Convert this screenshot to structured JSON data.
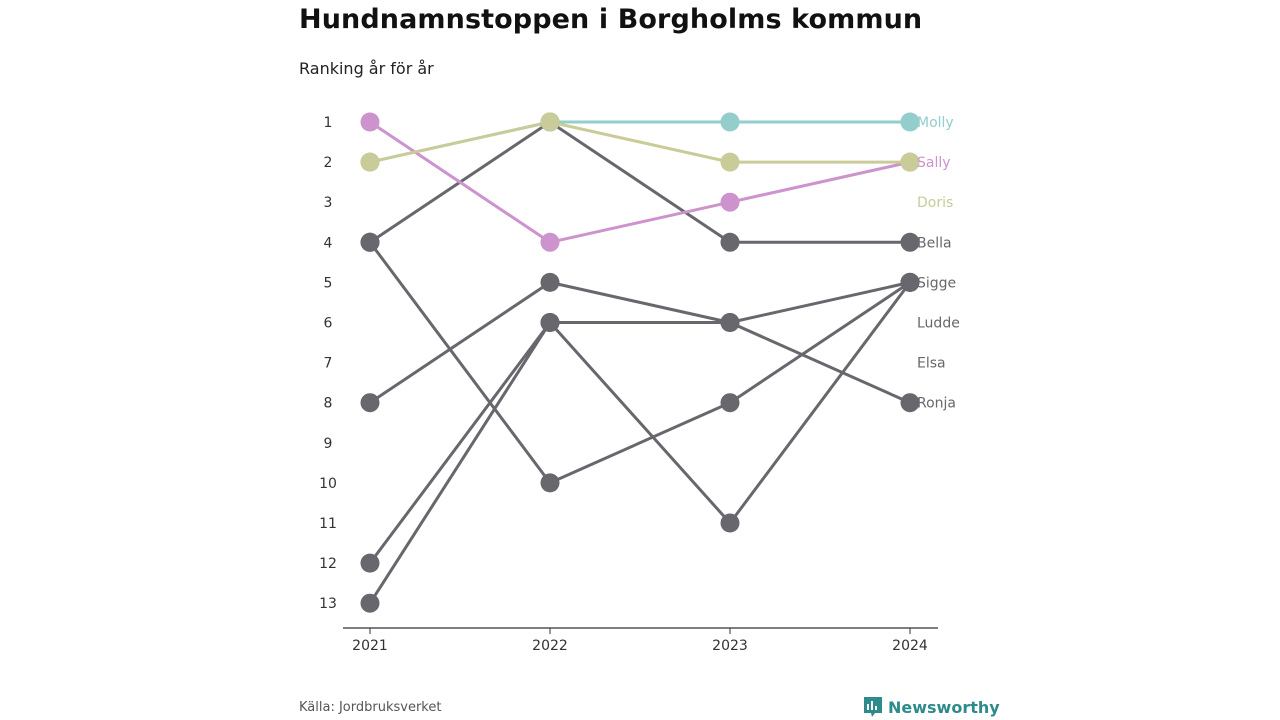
{
  "page": {
    "title": "Hundnamnstoppen i Borgholms kommun",
    "subtitle": "Ranking år för år",
    "source": "Källa: Jordbruksverket",
    "brand": "Newsworthy"
  },
  "colors": {
    "teal": "#93cdcc",
    "olive": "#c9cb98",
    "pink": "#cc93cc",
    "gray": "#68676d",
    "brand": "#2e8b8c"
  },
  "chart_data": {
    "type": "line",
    "title": "Hundnamnstoppen i Borgholms kommun",
    "subtitle": "Ranking år för år",
    "x": [
      "2021",
      "2022",
      "2023",
      "2024"
    ],
    "y_ticks": [
      1,
      2,
      3,
      4,
      5,
      6,
      7,
      8,
      9,
      10,
      11,
      12,
      13
    ],
    "ylim": [
      1,
      13
    ],
    "y_reversed": true,
    "grid": false,
    "series": [
      {
        "name": "Molly",
        "color": "#93cdcc",
        "values": [
          2,
          1,
          1,
          1
        ]
      },
      {
        "name": "Sally",
        "color": "#cc93cc",
        "values": [
          1,
          4,
          3,
          2
        ]
      },
      {
        "name": "Doris",
        "color": "#c9cb98",
        "values": [
          2,
          1,
          2,
          2
        ]
      },
      {
        "name": "Bella",
        "color": "#68676d",
        "values": [
          4,
          1,
          4,
          4
        ]
      },
      {
        "name": "Sigge",
        "color": "#68676d",
        "values": [
          13,
          6,
          11,
          5
        ]
      },
      {
        "name": "Ludde",
        "color": "#68676d",
        "values": [
          4,
          10,
          8,
          5
        ]
      },
      {
        "name": "Elsa",
        "color": "#68676d",
        "values": [
          8,
          5,
          6,
          8
        ]
      },
      {
        "name": "Ronja",
        "color": "#68676d",
        "values": [
          12,
          6,
          6,
          5
        ]
      }
    ],
    "end_labels": [
      {
        "name": "Molly",
        "rank": 1,
        "color": "#93cdcc"
      },
      {
        "name": "Sally",
        "rank": 2,
        "color": "#cc93cc"
      },
      {
        "name": "Doris",
        "rank": 3,
        "color": "#c9cb98"
      },
      {
        "name": "Bella",
        "rank": 4,
        "color": "#68676d"
      },
      {
        "name": "Sigge",
        "rank": 5,
        "color": "#68676d"
      },
      {
        "name": "Ludde",
        "rank": 6,
        "color": "#68676d"
      },
      {
        "name": "Elsa",
        "rank": 7,
        "color": "#68676d"
      },
      {
        "name": "Ronja",
        "rank": 8,
        "color": "#68676d"
      }
    ]
  }
}
